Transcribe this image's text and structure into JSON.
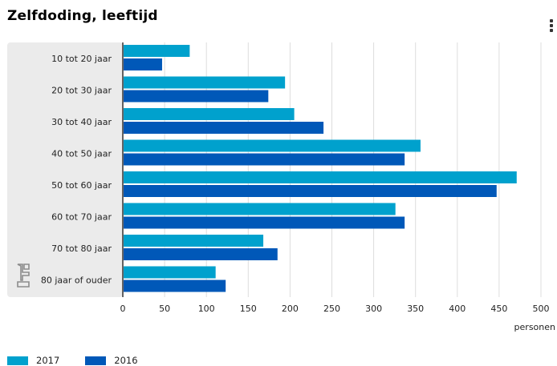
{
  "title": "Zelfdoding, leeftijd",
  "menu_icon": "hamburger-menu-icon",
  "logo_icon": "cbs-logo-icon",
  "colors": {
    "series_2017": "#00a1cd",
    "series_2016": "#0058b8",
    "plot_band": "#ebebeb",
    "grid": "#dddddd",
    "axis": "#333333"
  },
  "chart_data": {
    "type": "bar",
    "orientation": "horizontal",
    "title": "Zelfdoding, leeftijd",
    "xlabel": "personen",
    "ylabel": "",
    "xlim": [
      0,
      500
    ],
    "xticks": [
      0,
      50,
      100,
      150,
      200,
      250,
      300,
      350,
      400,
      450,
      500
    ],
    "grid": true,
    "legend_position": "bottom-left",
    "categories": [
      "10 tot 20 jaar",
      "20 tot 30 jaar",
      "30 tot 40 jaar",
      "40 tot 50 jaar",
      "50 tot 60 jaar",
      "60 tot 70 jaar",
      "70 tot 80 jaar",
      "80 jaar of ouder"
    ],
    "series": [
      {
        "name": "2017",
        "color": "#00a1cd",
        "values": [
          80,
          194,
          205,
          356,
          471,
          326,
          168,
          111
        ]
      },
      {
        "name": "2016",
        "color": "#0058b8",
        "values": [
          47,
          174,
          240,
          337,
          447,
          337,
          185,
          123
        ]
      }
    ]
  }
}
